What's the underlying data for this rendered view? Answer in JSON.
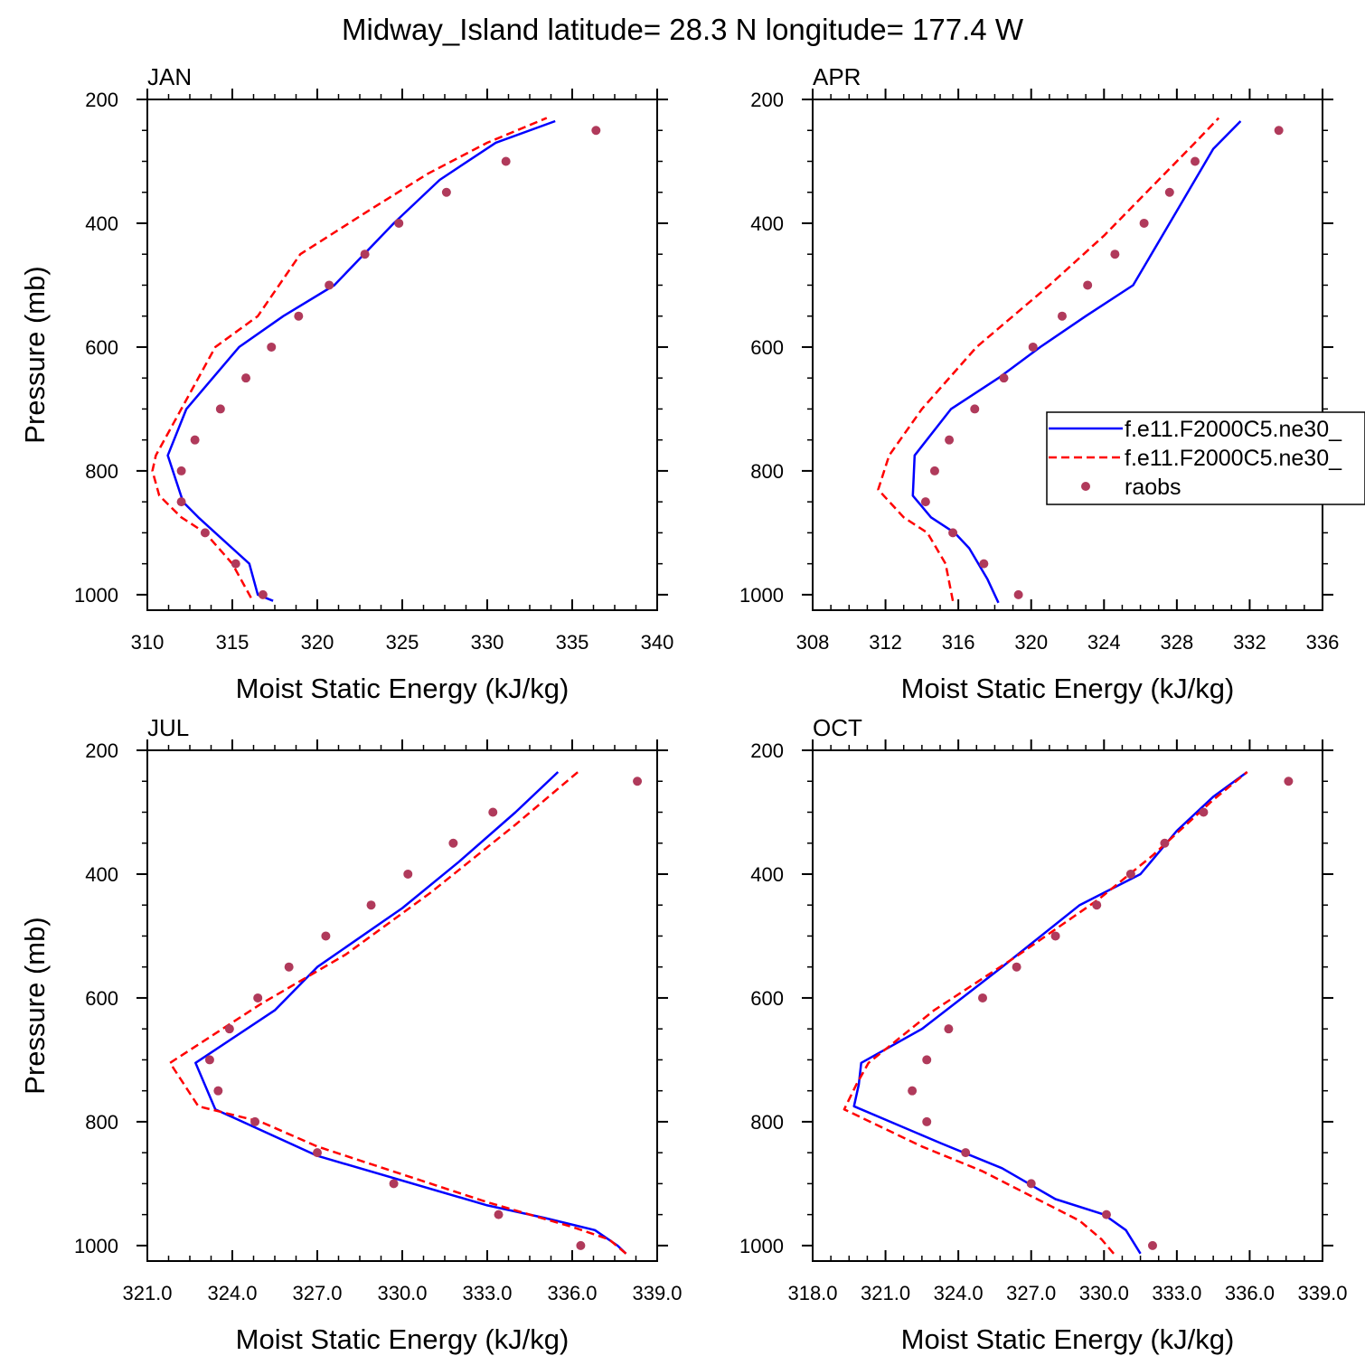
{
  "figure": {
    "title": "Midway_Island  latitude= 28.3 N longitude= 177.4 W"
  },
  "legend": {
    "entries": [
      {
        "label": "f.e11.F2000C5.ne30_",
        "style": "solid",
        "color": "#0000ff"
      },
      {
        "label": "f.e11.F2000C5.ne30_",
        "style": "dashed",
        "color": "#ff0000"
      },
      {
        "label": "raobs",
        "style": "marker",
        "color": "#b03a5b"
      }
    ]
  },
  "chart_data": [
    {
      "type": "line",
      "title": "JAN",
      "xlabel": "Moist Static Energy (kJ/kg)",
      "ylabel": "Pressure (mb)",
      "xlim": [
        310,
        340
      ],
      "ylim": [
        200,
        1025
      ],
      "y_reversed": true,
      "xticks": [
        "310",
        "315",
        "320",
        "325",
        "330",
        "335",
        "340"
      ],
      "yticks": [
        "200",
        "400",
        "600",
        "800",
        "1000"
      ],
      "series": [
        {
          "name": "f.e11.F2000C5.ne30_",
          "style": "solid",
          "color": "#0000ff",
          "x": [
            317.4,
            316.5,
            316.0,
            315.0,
            314.0,
            313.0,
            312.1,
            311.2,
            312.3,
            315.4,
            318.0,
            321.0,
            324.5,
            327.2,
            330.5,
            334.0
          ],
          "y": [
            1010,
            1000,
            950,
            925,
            900,
            875,
            850,
            775,
            700,
            600,
            550,
            500,
            400,
            330,
            270,
            235
          ]
        },
        {
          "name": "f.e11.F2000C5.ne30_",
          "style": "dashed",
          "color": "#ff0000",
          "x": [
            316.1,
            315.0,
            313.4,
            312.0,
            310.7,
            310.3,
            310.5,
            312.0,
            314.0,
            316.5,
            319.0,
            323.0,
            326.5,
            330.0,
            333.5
          ],
          "y": [
            1005,
            950,
            900,
            875,
            840,
            800,
            775,
            700,
            600,
            550,
            450,
            380,
            320,
            270,
            230
          ]
        },
        {
          "name": "raobs",
          "style": "marker",
          "color": "#b03a5b",
          "x": [
            316.8,
            315.2,
            313.4,
            312.0,
            312.0,
            312.8,
            314.3,
            315.8,
            317.3,
            318.9,
            320.7,
            322.8,
            324.8,
            327.6,
            331.1,
            336.4
          ],
          "y": [
            1000,
            950,
            900,
            850,
            800,
            750,
            700,
            650,
            600,
            550,
            500,
            450,
            400,
            350,
            300,
            250
          ]
        }
      ]
    },
    {
      "type": "line",
      "title": "APR",
      "xlabel": "Moist Static Energy (kJ/kg)",
      "ylabel": "",
      "xlim": [
        308,
        336
      ],
      "ylim": [
        200,
        1025
      ],
      "y_reversed": true,
      "xticks": [
        "308",
        "312",
        "316",
        "320",
        "324",
        "328",
        "332",
        "336"
      ],
      "yticks": [
        "200",
        "400",
        "600",
        "800",
        "1000"
      ],
      "series": [
        {
          "name": "f.e11.F2000C5.ne30_",
          "style": "solid",
          "color": "#0000ff",
          "x": [
            318.2,
            317.6,
            316.6,
            315.8,
            314.5,
            313.5,
            313.6,
            315.6,
            318.2,
            320.5,
            323.0,
            325.6,
            328.0,
            330.0,
            331.5
          ],
          "y": [
            1013,
            975,
            925,
            900,
            875,
            840,
            775,
            700,
            650,
            600,
            550,
            500,
            380,
            280,
            235
          ]
        },
        {
          "name": "f.e11.F2000C5.ne30_",
          "style": "dashed",
          "color": "#ff0000",
          "x": [
            315.7,
            315.3,
            314.3,
            313.0,
            311.9,
            311.6,
            312.2,
            314.0,
            317.0,
            321.0,
            324.0,
            327.0,
            329.0,
            330.3
          ],
          "y": [
            1010,
            950,
            900,
            875,
            840,
            830,
            775,
            700,
            600,
            500,
            420,
            330,
            270,
            230
          ]
        },
        {
          "name": "raobs",
          "style": "marker",
          "color": "#b03a5b",
          "x": [
            319.3,
            317.4,
            315.7,
            314.2,
            314.7,
            315.5,
            316.9,
            318.5,
            320.1,
            321.7,
            323.1,
            324.6,
            326.2,
            327.6,
            329.0,
            333.6
          ],
          "y": [
            1000,
            950,
            900,
            850,
            800,
            750,
            700,
            650,
            600,
            550,
            500,
            450,
            400,
            350,
            300,
            250
          ]
        }
      ]
    },
    {
      "type": "line",
      "title": "JUL",
      "xlabel": "Moist Static Energy (kJ/kg)",
      "ylabel": "Pressure (mb)",
      "xlim": [
        321.0,
        339.0
      ],
      "ylim": [
        200,
        1025
      ],
      "y_reversed": true,
      "xticks": [
        "321.0",
        "324.0",
        "327.0",
        "330.0",
        "333.0",
        "336.0",
        "339.0"
      ],
      "yticks": [
        "200",
        "400",
        "600",
        "800",
        "1000"
      ],
      "series": [
        {
          "name": "f.e11.F2000C5.ne30_",
          "style": "solid",
          "color": "#0000ff",
          "x": [
            337.9,
            337.6,
            336.8,
            335.0,
            333.0,
            327.0,
            323.4,
            322.7,
            325.5,
            327.0,
            330.0,
            332.0,
            334.0,
            335.5
          ],
          "y": [
            1013,
            1000,
            975,
            955,
            935,
            855,
            780,
            705,
            620,
            550,
            455,
            380,
            300,
            235
          ]
        },
        {
          "name": "f.e11.F2000C5.ne30_",
          "style": "dashed",
          "color": "#ff0000",
          "x": [
            337.9,
            337.3,
            336.0,
            334.5,
            333.0,
            327.0,
            325.0,
            322.8,
            321.8,
            325.0,
            328.0,
            331.0,
            334.0,
            336.2
          ],
          "y": [
            1013,
            990,
            970,
            950,
            930,
            840,
            800,
            775,
            705,
            610,
            530,
            430,
            320,
            235
          ]
        },
        {
          "name": "raobs",
          "style": "marker",
          "color": "#b03a5b",
          "x": [
            336.3,
            333.4,
            329.7,
            327.0,
            324.8,
            323.5,
            323.2,
            323.9,
            324.9,
            326.0,
            327.3,
            328.9,
            330.2,
            331.8,
            333.2,
            338.3
          ],
          "y": [
            1000,
            950,
            900,
            850,
            800,
            750,
            700,
            650,
            600,
            550,
            500,
            450,
            400,
            350,
            300,
            250
          ]
        }
      ]
    },
    {
      "type": "line",
      "title": "OCT",
      "xlabel": "Moist Static Energy (kJ/kg)",
      "ylabel": "",
      "xlim": [
        318.0,
        339.0
      ],
      "ylim": [
        200,
        1025
      ],
      "y_reversed": true,
      "xticks": [
        "318.0",
        "321.0",
        "324.0",
        "327.0",
        "330.0",
        "333.0",
        "336.0",
        "339.0"
      ],
      "yticks": [
        "200",
        "400",
        "600",
        "800",
        "1000"
      ],
      "series": [
        {
          "name": "f.e11.F2000C5.ne30_",
          "style": "solid",
          "color": "#0000ff",
          "x": [
            331.5,
            330.9,
            330.0,
            328.0,
            325.8,
            323.3,
            319.7,
            319.9,
            320.0,
            322.5,
            325.8,
            329.0,
            331.5,
            333.0,
            334.5,
            335.9
          ],
          "y": [
            1013,
            975,
            950,
            925,
            875,
            835,
            775,
            740,
            705,
            650,
            550,
            450,
            400,
            330,
            275,
            235
          ]
        },
        {
          "name": "f.e11.F2000C5.ne30_",
          "style": "dashed",
          "color": "#ff0000",
          "x": [
            330.4,
            329.9,
            329.0,
            327.0,
            325.0,
            322.5,
            319.3,
            319.8,
            320.3,
            323.0,
            326.5,
            329.8,
            332.0,
            334.5,
            335.9
          ],
          "y": [
            1013,
            990,
            960,
            920,
            880,
            840,
            780,
            740,
            705,
            620,
            530,
            440,
            370,
            280,
            235
          ]
        },
        {
          "name": "raobs",
          "style": "marker",
          "color": "#b03a5b",
          "x": [
            332.0,
            330.1,
            327.0,
            324.3,
            322.7,
            322.1,
            322.7,
            323.6,
            325.0,
            326.4,
            328.0,
            329.7,
            331.1,
            332.5,
            334.1,
            337.6
          ],
          "y": [
            1000,
            950,
            900,
            850,
            800,
            750,
            700,
            650,
            600,
            550,
            500,
            450,
            400,
            350,
            300,
            250
          ]
        }
      ]
    }
  ]
}
